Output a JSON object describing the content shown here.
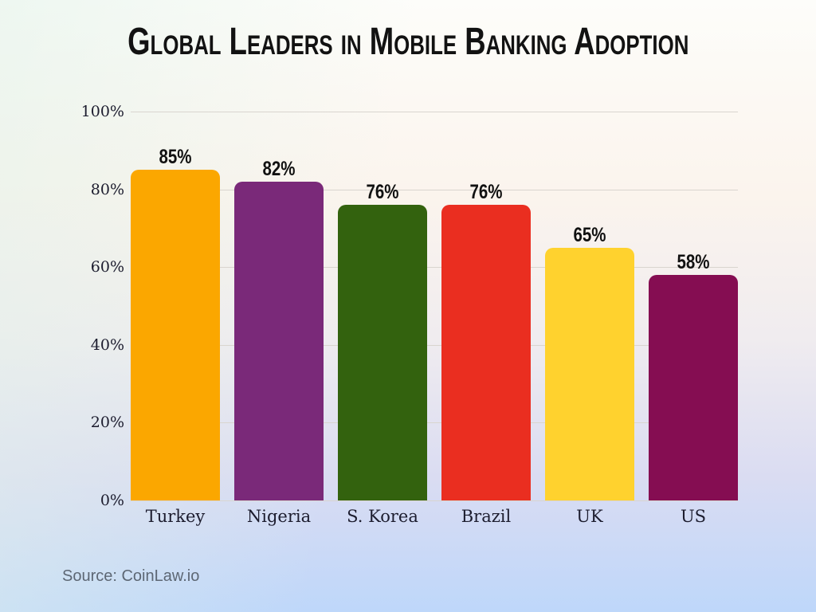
{
  "title": "Global Leaders in Mobile Banking Adoption",
  "source": "Source: CoinLaw.io",
  "chart_data": {
    "type": "bar",
    "title": "Global Leaders in Mobile Banking Adoption",
    "categories": [
      "Turkey",
      "Nigeria",
      "S. Korea",
      "Brazil",
      "UK",
      "US"
    ],
    "values": [
      85,
      82,
      76,
      76,
      65,
      58
    ],
    "value_labels": [
      "85%",
      "82%",
      "76%",
      "76%",
      "65%",
      "58%"
    ],
    "bar_colors": [
      "#FBA700",
      "#7A2979",
      "#33620E",
      "#EA2E20",
      "#FFD22E",
      "#850D52"
    ],
    "xlabel": "",
    "ylabel": "",
    "ylim": [
      0,
      100
    ],
    "yticks": [
      0,
      20,
      40,
      60,
      80,
      100
    ],
    "ytick_labels": [
      "0%",
      "20%",
      "40%",
      "60%",
      "80%",
      "100%"
    ],
    "grid": true,
    "legend": false,
    "gridline_color": "#d9d5cf",
    "background_top_color": "#fdfdfa",
    "background_bottom_color": "#bed7fa"
  }
}
